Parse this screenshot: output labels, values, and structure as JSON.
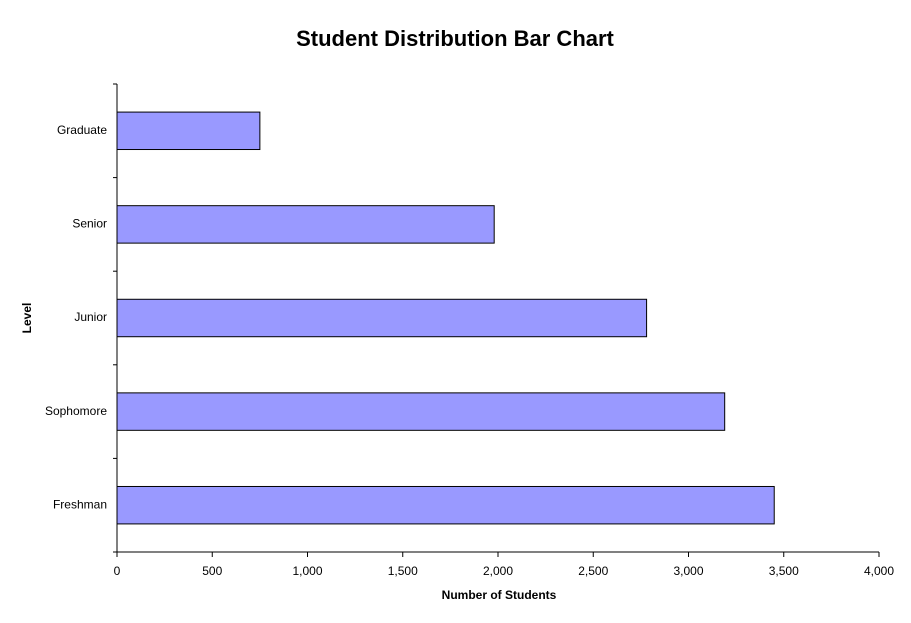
{
  "chart_data": {
    "type": "hbar",
    "title": "Student Distribution Bar Chart",
    "x_label": "Number of Students",
    "y_label": "Level",
    "categories": [
      "Freshman",
      "Sophomore",
      "Junior",
      "Senior",
      "Graduate"
    ],
    "values": [
      3450,
      3190,
      2780,
      1980,
      750
    ],
    "color": "#9999ff",
    "xlim": [
      0,
      4000
    ],
    "xticks": [
      0,
      500,
      {
        "value": 1000,
        "label": "1,000"
      },
      {
        "value": 1500,
        "label": "1,500"
      },
      {
        "value": 2000,
        "label": "2,000"
      },
      {
        "value": 2500,
        "label": "2,500"
      },
      {
        "value": 3000,
        "label": "3,000"
      },
      {
        "value": 3500,
        "label": "3,500"
      },
      {
        "value": 4000,
        "label": "4,000"
      }
    ],
    "grid": false
  }
}
